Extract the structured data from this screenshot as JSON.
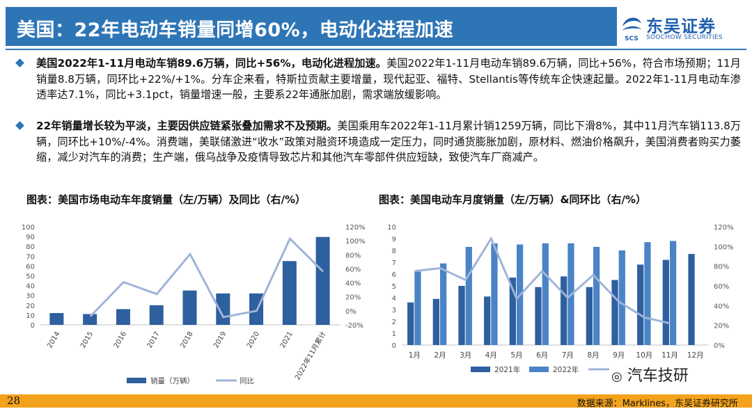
{
  "header": {
    "title": "美国：22年电动车销量同增60%，电动化进程加速",
    "logo_cn": "东吴证券",
    "logo_en": "SOOCHOW SECURITIES",
    "logo_mark": "SCS"
  },
  "bullets": [
    {
      "lead": "美国2022年1-11月电动车销89.6万辆，同比+56%，电动化进程加速。",
      "body": "美国2022年1-11月电动车销89.6万辆，同比+56%，符合市场预期；11月销量8.8万辆，同环比+22%/+1%。分车企来看，特斯拉贡献主要增量，现代起亚、福特、Stellantis等传统车企快速起量。2022年1-11月电动车渗透率达7.1%，同比+3.1pct，销量增速一般，主要系22年通胀加剧，需求端放缓影响。"
    },
    {
      "lead": "22年销量增长较为平淡，主要因供应链紧张叠加需求不及预期。",
      "body": "美国乘用车2022年1-11月累计销1259万辆，同比下滑8%，其中11月汽车销113.8万辆，同环比+10%/-4%。消费端，美联储激进“收水”政策对融资环境造成一定压力，同时通货膨胀加剧，原材料、燃油价格飙升，美国消费者购买力萎缩，减少对汽车的消费；生产端，俄乌战争及疫情导致芯片和其他汽车零部件供应短缺，致使汽车厂商减产。"
    }
  ],
  "charts": {
    "left_title": "图表：美国市场电动车年度销量（左/万辆）及同比（右/%）",
    "right_title": "图表：美国电动车月度销量（左/万辆）&同环比（右/%）"
  },
  "chart_data": [
    {
      "type": "bar",
      "categories": [
        "2014",
        "2015",
        "2016",
        "2017",
        "2018",
        "2019",
        "2020",
        "2021",
        "2022年11月累计"
      ],
      "series": [
        {
          "name": "销量（万辆）",
          "type": "bar",
          "axis": "left",
          "color": "#2e5f9e",
          "values": [
            12,
            11,
            16,
            20,
            35,
            32,
            32,
            65,
            89.6
          ]
        },
        {
          "name": "同比",
          "type": "line",
          "axis": "right",
          "color": "#9fb4d9",
          "values": [
            null,
            -8,
            41,
            24,
            81,
            -9,
            0,
            103,
            56
          ]
        }
      ],
      "yleft": {
        "min": 0,
        "max": 100,
        "ticks": [
          "0",
          "10",
          "20",
          "30",
          "40",
          "50",
          "60",
          "70",
          "80",
          "90",
          "100"
        ]
      },
      "yright": {
        "min": -20,
        "max": 120,
        "ticks": [
          "-20%",
          "0%",
          "20%",
          "40%",
          "60%",
          "80%",
          "100%",
          "120%"
        ]
      },
      "legend_position": "bottom"
    },
    {
      "type": "bar",
      "categories": [
        "1月",
        "2月",
        "3月",
        "4月",
        "5月",
        "6月",
        "7月",
        "8月",
        "9月",
        "10月",
        "11月",
        "12月"
      ],
      "series": [
        {
          "name": "2021年",
          "type": "bar",
          "axis": "left",
          "color": "#2e5f9e",
          "values": [
            3.6,
            3.9,
            5.0,
            4.1,
            5.7,
            4.9,
            5.8,
            4.9,
            5.5,
            6.8,
            7.2,
            7.7
          ]
        },
        {
          "name": "2022年",
          "type": "bar",
          "axis": "left",
          "color": "#4b84c6",
          "values": [
            6.2,
            6.9,
            8.3,
            8.6,
            8.5,
            8.6,
            8.6,
            8.3,
            8.0,
            8.7,
            8.8,
            null
          ]
        },
        {
          "name": "",
          "type": "line",
          "axis": "right",
          "color": "#9fb4d9",
          "values": [
            75,
            78,
            66,
            108,
            47,
            75,
            48,
            71,
            44,
            28,
            22,
            null
          ]
        }
      ],
      "yleft": {
        "min": 0,
        "max": 10,
        "ticks": [
          "0",
          "1",
          "2",
          "3",
          "4",
          "5",
          "6",
          "7",
          "8",
          "9",
          "10"
        ]
      },
      "yright": {
        "min": 0,
        "max": 120,
        "ticks": [
          "0%",
          "20%",
          "40%",
          "60%",
          "80%",
          "100%",
          "120%"
        ]
      },
      "legend_position": "bottom"
    }
  ],
  "footer": {
    "page": "28",
    "source": "数据来源：Marklines，东吴证券研究所",
    "watermark": "汽车技研"
  }
}
